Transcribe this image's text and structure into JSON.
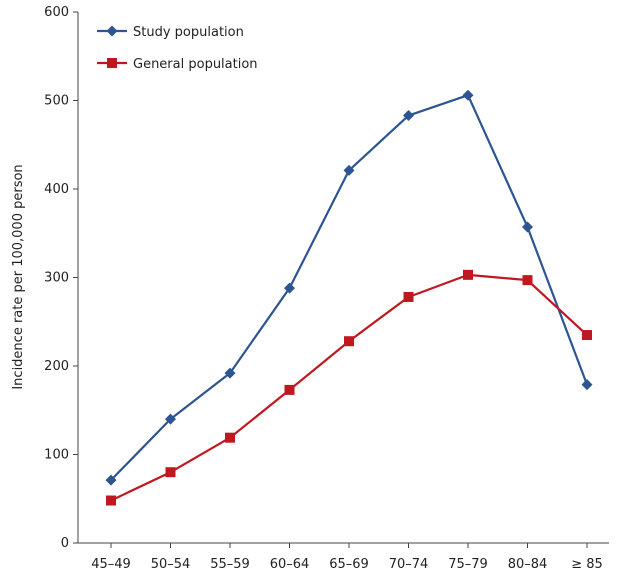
{
  "chart_data": {
    "type": "line",
    "title": "",
    "xlabel": "",
    "ylabel": "Incidence rate per 100,000 person",
    "categories": [
      "45–49",
      "50–54",
      "55–59",
      "60–64",
      "65–69",
      "70–74",
      "75–79",
      "80–84",
      "≥ 85"
    ],
    "ylim": [
      0,
      600
    ],
    "yticks": [
      0,
      100,
      200,
      300,
      400,
      500,
      600
    ],
    "grid": false,
    "legend_position": "top-left",
    "series": [
      {
        "name": "Study population",
        "color": "#2d5592",
        "marker": "diamond",
        "values": [
          71,
          140,
          192,
          288,
          421,
          483,
          506,
          357,
          179
        ]
      },
      {
        "name": "General population",
        "color": "#c0181f",
        "marker": "square",
        "values": [
          48,
          80,
          119,
          173,
          228,
          278,
          303,
          297,
          235
        ]
      }
    ]
  }
}
